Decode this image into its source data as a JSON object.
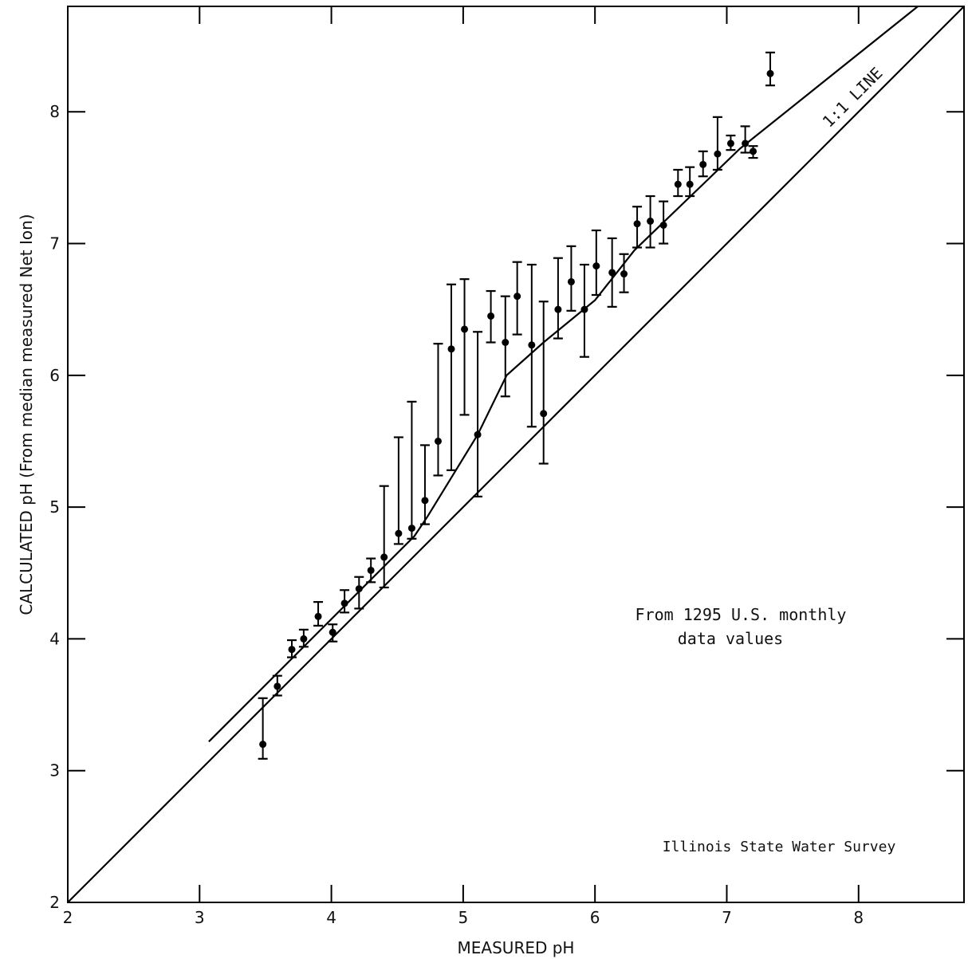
{
  "chart_data": {
    "type": "scatter",
    "title": "",
    "xlabel": "MEASURED pH",
    "ylabel": "CALCULATED pH (From median measured Net Ion)",
    "xlim": [
      2,
      8.8
    ],
    "ylim": [
      2,
      8.8
    ],
    "x_ticks": [
      2,
      3,
      4,
      5,
      6,
      7,
      8
    ],
    "y_ticks": [
      2,
      3,
      4,
      5,
      6,
      7,
      8
    ],
    "x_tick_labels": [
      "2",
      "3",
      "4",
      "5",
      "6",
      "7",
      "8"
    ],
    "y_tick_labels": [
      "2",
      "3",
      "4",
      "5",
      "6",
      "7",
      "8"
    ],
    "grid": false,
    "points": [
      {
        "x": 3.48,
        "y": 3.2,
        "low": 3.09,
        "high": 3.55
      },
      {
        "x": 3.59,
        "y": 3.64,
        "low": 3.57,
        "high": 3.72
      },
      {
        "x": 3.7,
        "y": 3.92,
        "low": 3.86,
        "high": 3.99
      },
      {
        "x": 3.79,
        "y": 4.0,
        "low": 3.94,
        "high": 4.07
      },
      {
        "x": 3.9,
        "y": 4.17,
        "low": 4.1,
        "high": 4.28
      },
      {
        "x": 4.01,
        "y": 4.05,
        "low": 3.98,
        "high": 4.11
      },
      {
        "x": 4.1,
        "y": 4.27,
        "low": 4.2,
        "high": 4.37
      },
      {
        "x": 4.21,
        "y": 4.38,
        "low": 4.23,
        "high": 4.47
      },
      {
        "x": 4.3,
        "y": 4.52,
        "low": 4.43,
        "high": 4.61
      },
      {
        "x": 4.4,
        "y": 4.62,
        "low": 4.39,
        "high": 5.16
      },
      {
        "x": 4.51,
        "y": 4.8,
        "low": 4.72,
        "high": 5.53
      },
      {
        "x": 4.61,
        "y": 4.84,
        "low": 4.76,
        "high": 5.8
      },
      {
        "x": 4.71,
        "y": 5.05,
        "low": 4.87,
        "high": 5.47
      },
      {
        "x": 4.81,
        "y": 5.5,
        "low": 5.24,
        "high": 6.24
      },
      {
        "x": 4.91,
        "y": 6.2,
        "low": 5.28,
        "high": 6.69
      },
      {
        "x": 5.01,
        "y": 6.35,
        "low": 5.7,
        "high": 6.73
      },
      {
        "x": 5.11,
        "y": 5.55,
        "low": 5.08,
        "high": 6.33
      },
      {
        "x": 5.21,
        "y": 6.45,
        "low": 6.25,
        "high": 6.64
      },
      {
        "x": 5.32,
        "y": 6.25,
        "low": 5.84,
        "high": 6.6
      },
      {
        "x": 5.41,
        "y": 6.6,
        "low": 6.31,
        "high": 6.86
      },
      {
        "x": 5.52,
        "y": 6.23,
        "low": 5.61,
        "high": 6.84
      },
      {
        "x": 5.61,
        "y": 5.71,
        "low": 5.33,
        "high": 6.56
      },
      {
        "x": 5.72,
        "y": 6.5,
        "low": 6.28,
        "high": 6.89
      },
      {
        "x": 5.82,
        "y": 6.71,
        "low": 6.49,
        "high": 6.98
      },
      {
        "x": 5.92,
        "y": 6.5,
        "low": 6.14,
        "high": 6.84
      },
      {
        "x": 6.01,
        "y": 6.83,
        "low": 6.61,
        "high": 7.1
      },
      {
        "x": 6.13,
        "y": 6.78,
        "low": 6.52,
        "high": 7.04
      },
      {
        "x": 6.22,
        "y": 6.77,
        "low": 6.63,
        "high": 6.92
      },
      {
        "x": 6.32,
        "y": 7.15,
        "low": 6.97,
        "high": 7.28
      },
      {
        "x": 6.42,
        "y": 7.17,
        "low": 6.97,
        "high": 7.36
      },
      {
        "x": 6.52,
        "y": 7.14,
        "low": 7.0,
        "high": 7.32
      },
      {
        "x": 6.63,
        "y": 7.45,
        "low": 7.36,
        "high": 7.56
      },
      {
        "x": 6.72,
        "y": 7.45,
        "low": 7.36,
        "high": 7.58
      },
      {
        "x": 6.82,
        "y": 7.6,
        "low": 7.51,
        "high": 7.7
      },
      {
        "x": 6.93,
        "y": 7.68,
        "low": 7.56,
        "high": 7.96
      },
      {
        "x": 7.03,
        "y": 7.76,
        "low": 7.71,
        "high": 7.82
      },
      {
        "x": 7.14,
        "y": 7.76,
        "low": 7.69,
        "high": 7.89
      },
      {
        "x": 7.2,
        "y": 7.7,
        "low": 7.65,
        "high": 7.74
      },
      {
        "x": 7.33,
        "y": 8.29,
        "low": 8.2,
        "high": 8.45
      }
    ],
    "lines": [
      {
        "name": "1:1 LINE",
        "points": [
          [
            2,
            2
          ],
          [
            8.8,
            8.8
          ]
        ]
      },
      {
        "name": "",
        "points": [
          [
            3.07,
            3.22
          ],
          [
            4.63,
            4.78
          ],
          [
            4.73,
            4.93
          ],
          [
            5.11,
            5.55
          ],
          [
            5.33,
            6.0
          ],
          [
            5.61,
            6.25
          ],
          [
            6.0,
            6.57
          ],
          [
            6.3,
            6.95
          ],
          [
            7.1,
            7.72
          ],
          [
            8.45,
            8.8
          ]
        ]
      }
    ],
    "annotations": [
      {
        "text": "1:1 LINE"
      },
      {
        "text": "From 1295 U.S. monthly"
      },
      {
        "text": "data values"
      },
      {
        "text": "Illinois State Water Survey"
      }
    ]
  }
}
